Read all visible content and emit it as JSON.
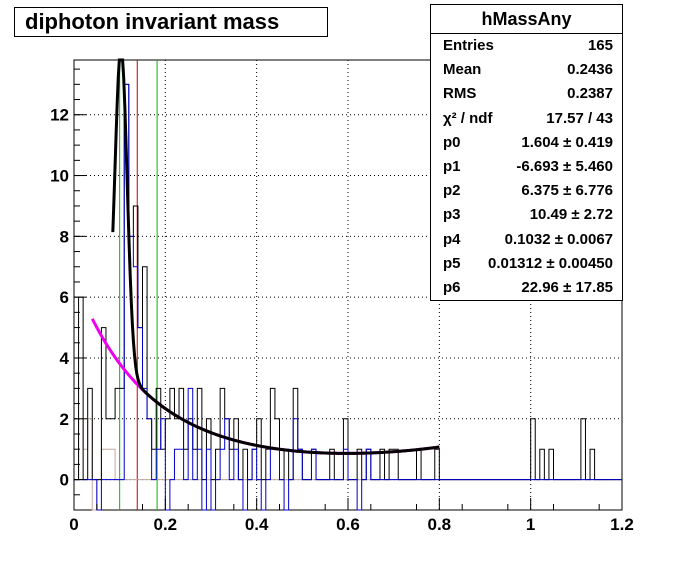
{
  "title": "diphoton invariant mass",
  "stats": {
    "name": "hMassAny",
    "rows": [
      {
        "label": "Entries",
        "value": "165"
      },
      {
        "label": "Mean",
        "value": "0.2436"
      },
      {
        "label": "RMS",
        "value": "0.2387"
      },
      {
        "label": "χ² / ndf",
        "value": "17.57 / 43"
      },
      {
        "label": "p0",
        "value": "1.604 ± 0.419"
      },
      {
        "label": "p1",
        "value": "-6.693 ± 5.460"
      },
      {
        "label": "p2",
        "value": "6.375 ± 6.776"
      },
      {
        "label": "p3",
        "value": "10.49 ± 2.72"
      },
      {
        "label": "p4",
        "value": "0.1032 ± 0.0067"
      },
      {
        "label": "p5",
        "value": "0.01312 ± 0.00450"
      },
      {
        "label": "p6",
        "value": "22.96 ± 17.85"
      }
    ]
  },
  "chart_data": {
    "type": "line",
    "title": "diphoton invariant mass",
    "xlim": [
      0,
      1.2
    ],
    "ylim": [
      -1,
      13.8
    ],
    "xticks": [
      "0",
      "0.2",
      "0.4",
      "0.6",
      "0.8",
      "1",
      "1.2"
    ],
    "yticks": [
      "0",
      "2",
      "4",
      "6",
      "8",
      "10",
      "12"
    ],
    "xtick_values": [
      0,
      0.2,
      0.4,
      0.6,
      0.8,
      1.0,
      1.2
    ],
    "ytick_values": [
      0,
      2,
      4,
      6,
      8,
      10,
      12
    ],
    "grid": true,
    "vertical_markers": [
      {
        "x": 0.1,
        "color": "#00bb00"
      },
      {
        "x": 0.1385,
        "color": "#cc0000"
      },
      {
        "x": 0.182,
        "color": "#00bb00"
      }
    ],
    "histogram_black": {
      "bin_width": 0.01,
      "x_start": 0.0,
      "values": [
        0,
        6,
        0,
        3,
        0,
        0,
        5,
        2,
        2,
        3,
        3,
        13,
        8,
        9,
        5,
        7,
        2,
        1,
        3,
        1,
        2,
        3,
        2,
        3,
        1,
        2,
        1,
        3,
        0,
        2,
        0,
        1,
        3,
        2,
        1,
        2,
        0,
        1,
        0,
        1,
        2,
        0,
        1,
        3,
        2,
        0,
        1,
        0,
        3,
        1,
        0,
        0,
        1,
        0,
        0,
        0,
        1,
        0,
        0,
        2,
        0,
        0,
        1,
        0,
        1,
        0,
        0,
        1,
        0,
        1,
        1,
        0,
        0,
        0,
        0,
        1,
        0,
        0,
        0,
        1,
        0,
        0,
        0,
        0,
        0,
        0,
        0,
        0,
        0,
        0,
        0,
        0,
        0,
        0,
        0,
        0,
        0,
        0,
        0,
        0,
        2,
        0,
        1,
        0,
        1,
        0,
        0,
        0,
        0,
        0,
        0,
        2,
        0,
        1,
        0,
        0,
        0,
        0,
        0,
        0
      ]
    },
    "histogram_blue": {
      "bin_width": 0.01,
      "x_start": 0.0,
      "values": [
        0,
        0,
        0,
        0,
        0,
        -1,
        0,
        0,
        0,
        0,
        0,
        13,
        8,
        7,
        5,
        3,
        2,
        0,
        1,
        2,
        -1,
        0,
        1,
        1,
        0,
        3,
        0,
        1,
        -1,
        1,
        -1,
        0,
        1,
        2,
        0,
        1,
        0,
        -1,
        0,
        1,
        0,
        -1,
        0,
        1,
        1,
        0,
        -1,
        0,
        2,
        1,
        0,
        0,
        1,
        0,
        0,
        0,
        0,
        0,
        0,
        1,
        0,
        0,
        -1,
        0,
        1,
        0,
        0,
        0,
        0,
        0,
        0,
        0,
        0,
        0,
        0,
        0,
        0,
        0,
        0,
        0,
        0,
        0,
        0,
        0,
        0,
        0,
        0,
        0,
        0,
        0,
        0,
        0,
        0,
        0,
        0,
        0,
        0,
        0,
        0,
        0,
        0,
        0,
        0,
        0,
        0,
        0,
        0,
        0,
        0,
        0,
        0,
        0,
        0,
        0,
        0,
        0,
        0,
        0,
        0,
        0
      ]
    },
    "histogram_brown": {
      "bin_width": 0.01,
      "x_start": 0.0,
      "values": [
        0,
        2,
        1,
        2,
        -1,
        0,
        1,
        1,
        1,
        0,
        0,
        0,
        0,
        0,
        0,
        0,
        0,
        0,
        0,
        0,
        0,
        0,
        0,
        0,
        0,
        0,
        0,
        0,
        0,
        0,
        0,
        0,
        0,
        0,
        0,
        0,
        0,
        0,
        0,
        0,
        0,
        0,
        0,
        0,
        0,
        0,
        0,
        0,
        0,
        0,
        0,
        0,
        0,
        0,
        0,
        0,
        0,
        0,
        0,
        0,
        0,
        0,
        0,
        0,
        0,
        0,
        0,
        0,
        0,
        0,
        0,
        0,
        0,
        0,
        0,
        0,
        0,
        0,
        0,
        0,
        0,
        0,
        0,
        0,
        0,
        0,
        0,
        0,
        0,
        0,
        0,
        0,
        0,
        0,
        0,
        0,
        0,
        0,
        0,
        0,
        0,
        0,
        0,
        0,
        0,
        0,
        0,
        0,
        0,
        0,
        0,
        0,
        0,
        0,
        0,
        0,
        0,
        0,
        0,
        0
      ]
    },
    "background_fit": {
      "color": "#ee00ee",
      "x_range": [
        0.04,
        0.8
      ],
      "params": [
        1.604,
        -6.693,
        6.375
      ]
    },
    "total_fit": {
      "color": "#000000",
      "x_range": [
        0.085,
        0.8
      ],
      "params": [
        1.604,
        -6.693,
        6.375,
        10.49,
        0.1032,
        0.01312,
        22.96
      ]
    }
  }
}
